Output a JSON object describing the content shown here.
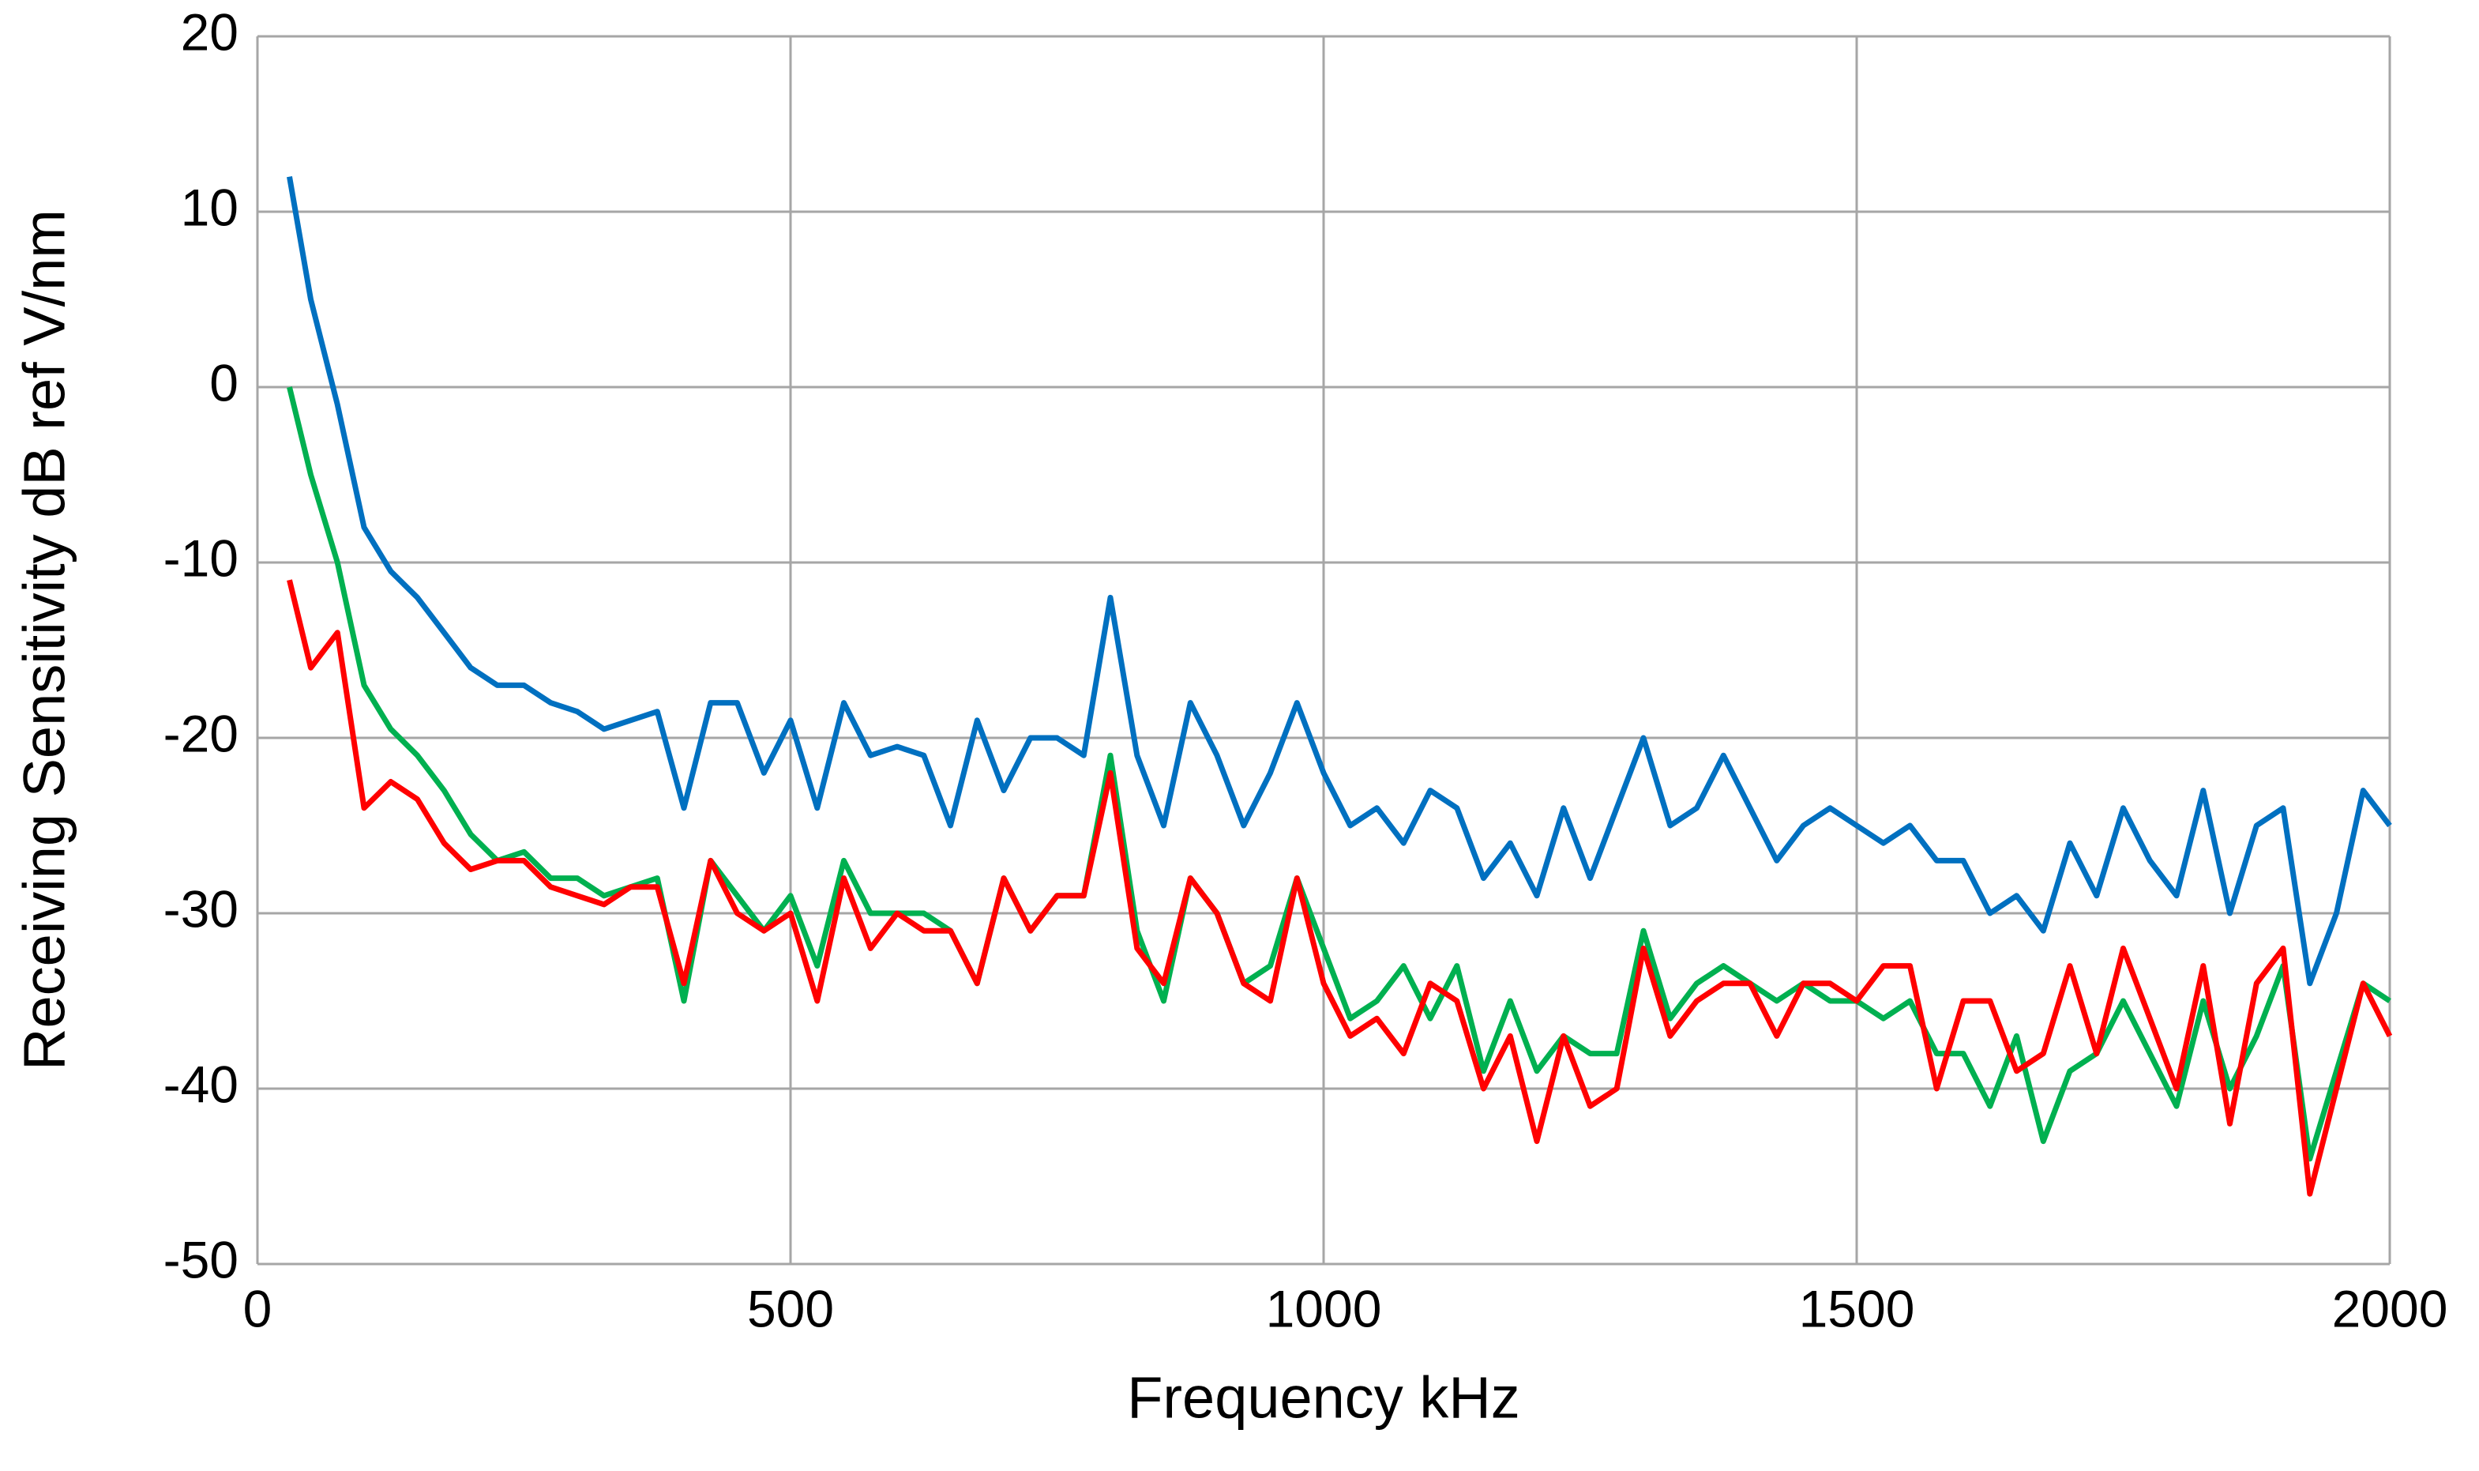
{
  "chart_data": {
    "type": "line",
    "xlabel": "Frequency  kHz",
    "ylabel": "Receiving Sensitivity  dB ref V/nm",
    "x": [
      30,
      50,
      75,
      100,
      125,
      150,
      175,
      200,
      225,
      250,
      275,
      300,
      325,
      350,
      375,
      400,
      425,
      450,
      475,
      500,
      525,
      550,
      575,
      600,
      625,
      650,
      675,
      700,
      725,
      750,
      775,
      800,
      825,
      850,
      875,
      900,
      925,
      950,
      975,
      1000,
      1025,
      1050,
      1075,
      1100,
      1125,
      1150,
      1175,
      1200,
      1225,
      1250,
      1275,
      1300,
      1325,
      1350,
      1375,
      1400,
      1425,
      1450,
      1475,
      1500,
      1525,
      1550,
      1575,
      1600,
      1625,
      1650,
      1675,
      1700,
      1725,
      1750,
      1775,
      1800,
      1825,
      1850,
      1875,
      1900,
      1925,
      1950,
      1975,
      2000
    ],
    "series": [
      {
        "color": "#0070c0",
        "values": [
          12,
          5,
          -1,
          -8,
          -10.5,
          -12,
          -14,
          -16,
          -17,
          -17,
          -18,
          -18.5,
          -19.5,
          -19,
          -18.5,
          -24,
          -18,
          -18,
          -22,
          -19,
          -24,
          -18,
          -21,
          -20.5,
          -21,
          -25,
          -19,
          -23,
          -20,
          -20,
          -21,
          -12,
          -21,
          -25,
          -18,
          -21,
          -25,
          -22,
          -18,
          -22,
          -25,
          -24,
          -26,
          -23,
          -24,
          -28,
          -26,
          -29,
          -24,
          -28,
          -24,
          -20,
          -25,
          -24,
          -21,
          -24,
          -27,
          -25,
          -24,
          -25,
          -26,
          -25,
          -27,
          -27,
          -30,
          -29,
          -31,
          -26,
          -29,
          -24,
          -27,
          -29,
          -23,
          -30,
          -25,
          -24,
          -34,
          -30,
          -23,
          -25
        ]
      },
      {
        "color": "#00b050",
        "values": [
          0,
          -5,
          -10,
          -17,
          -19.5,
          -21,
          -23,
          -25.5,
          -27,
          -26.5,
          -28,
          -28,
          -29,
          -28.5,
          -28,
          -35,
          -27,
          -29,
          -31,
          -29,
          -33,
          -27,
          -30,
          -30,
          -30,
          -31,
          -34,
          -28,
          -31,
          -29,
          -29,
          -21,
          -31,
          -35,
          -28,
          -30,
          -34,
          -33,
          -28,
          -32,
          -36,
          -35,
          -33,
          -36,
          -33,
          -39,
          -35,
          -39,
          -37,
          -38,
          -38,
          -31,
          -36,
          -34,
          -33,
          -34,
          -35,
          -34,
          -35,
          -35,
          -36,
          -35,
          -38,
          -38,
          -41,
          -37,
          -43,
          -39,
          -38,
          -35,
          -38,
          -41,
          -35,
          -40,
          -37,
          -33,
          -44,
          -39,
          -34,
          -35
        ]
      },
      {
        "color": "#ff0000",
        "values": [
          -11,
          -16,
          -14,
          -24,
          -22.5,
          -23.5,
          -26,
          -27.5,
          -27,
          -27,
          -28.5,
          -29,
          -29.5,
          -28.5,
          -28.5,
          -34,
          -27,
          -30,
          -31,
          -30,
          -35,
          -28,
          -32,
          -30,
          -31,
          -31,
          -34,
          -28,
          -31,
          -29,
          -29,
          -22,
          -32,
          -34,
          -28,
          -30,
          -34,
          -35,
          -28,
          -34,
          -37,
          -36,
          -38,
          -34,
          -35,
          -40,
          -37,
          -43,
          -37,
          -41,
          -40,
          -32,
          -37,
          -35,
          -34,
          -34,
          -37,
          -34,
          -34,
          -35,
          -33,
          -33,
          -40,
          -35,
          -35,
          -39,
          -38,
          -33,
          -38,
          -32,
          -36,
          -40,
          -33,
          -42,
          -34,
          -32,
          -46,
          -40,
          -34,
          -37
        ]
      }
    ],
    "xlim": [
      0,
      2000
    ],
    "xticks": [
      0,
      500,
      1000,
      1500,
      2000
    ],
    "ylim": [
      -50,
      20
    ],
    "yticks": [
      -50,
      -40,
      -30,
      -20,
      -10,
      0,
      10,
      20
    ],
    "grid": true
  }
}
